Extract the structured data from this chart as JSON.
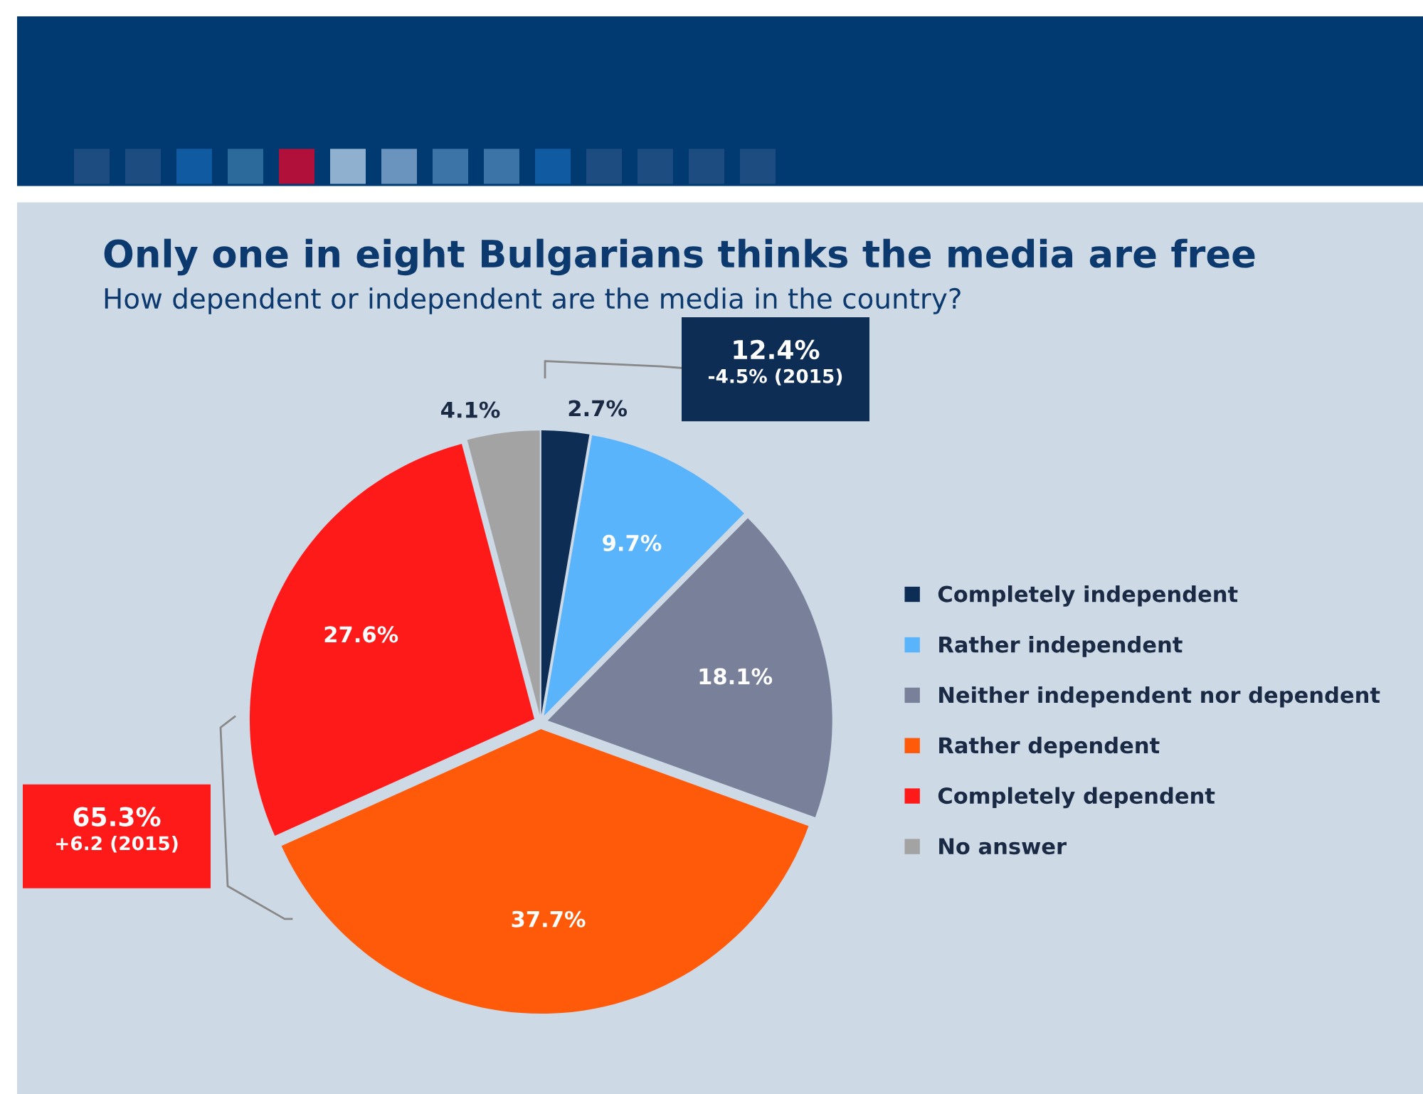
{
  "chart_data": {
    "type": "pie",
    "title": "Only one in eight Bulgarians thinks the media are free",
    "subtitle": "How dependent or independent are the media in the country?",
    "categories": [
      "Completely independent",
      "Rather independent",
      "Neither independent nor dependent",
      "Rather dependent",
      "Completely dependent",
      "No answer"
    ],
    "values": [
      2.7,
      9.7,
      18.1,
      37.7,
      27.6,
      4.1
    ],
    "colors": [
      "#0d2d55",
      "#5ab4fb",
      "#79809a",
      "#ff5a0a",
      "#ff1a1a",
      "#a3a3a3"
    ],
    "value_labels": [
      "2.7%",
      "9.7%",
      "18.1%",
      "37.7%",
      "27.6%",
      "4.1%"
    ],
    "legend": "right",
    "annotations": [
      "12.4%\n-4.5% (2015)",
      "65.3%\n+6.2 (2015)"
    ]
  }
}
